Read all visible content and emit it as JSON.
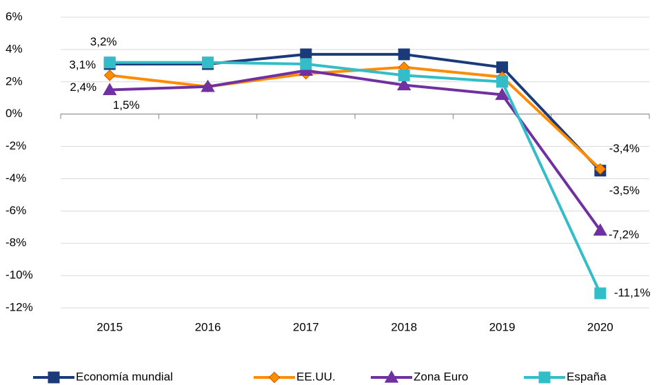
{
  "chart_data": {
    "type": "line",
    "categories": [
      "2015",
      "2016",
      "2017",
      "2018",
      "2019",
      "2020"
    ],
    "series": [
      {
        "name": "Economía mundial",
        "color": "#1b3a7a",
        "marker": "square",
        "values": [
          3.1,
          3.1,
          3.7,
          3.7,
          2.9,
          -3.5
        ],
        "value_labels": [
          "3,1%",
          null,
          null,
          null,
          null,
          "-3,5%"
        ]
      },
      {
        "name": "EE.UU.",
        "color": "#ff8c00",
        "marker": "diamond",
        "values": [
          2.4,
          1.7,
          2.5,
          2.9,
          2.3,
          -3.4
        ],
        "value_labels": [
          "2,4%",
          null,
          null,
          null,
          null,
          "-3,4%"
        ]
      },
      {
        "name": "Zona Euro",
        "color": "#7030a0",
        "marker": "triangle",
        "values": [
          1.5,
          1.7,
          2.7,
          1.8,
          1.2,
          -7.2
        ],
        "value_labels": [
          "1,5%",
          null,
          null,
          null,
          null,
          "-7,2%"
        ]
      },
      {
        "name": "España",
        "color": "#33bdc9",
        "marker": "square",
        "values": [
          3.2,
          3.2,
          3.1,
          2.4,
          2.0,
          -11.1
        ],
        "value_labels": [
          "3,2%",
          null,
          null,
          null,
          null,
          "-11,1%"
        ]
      }
    ],
    "ylim": [
      -12,
      6
    ],
    "yticks": [
      {
        "value": -12,
        "label": "-12%"
      },
      {
        "value": -10,
        "label": "-10%"
      },
      {
        "value": -8,
        "label": "-8%"
      },
      {
        "value": -6,
        "label": "-6%"
      },
      {
        "value": -4,
        "label": "-4%"
      },
      {
        "value": -2,
        "label": "-2%"
      },
      {
        "value": 0,
        "label": "0%"
      },
      {
        "value": 2,
        "label": "2%"
      },
      {
        "value": 4,
        "label": "4%"
      },
      {
        "value": 6,
        "label": "6%"
      }
    ],
    "grid": true,
    "legend": "bottom"
  }
}
